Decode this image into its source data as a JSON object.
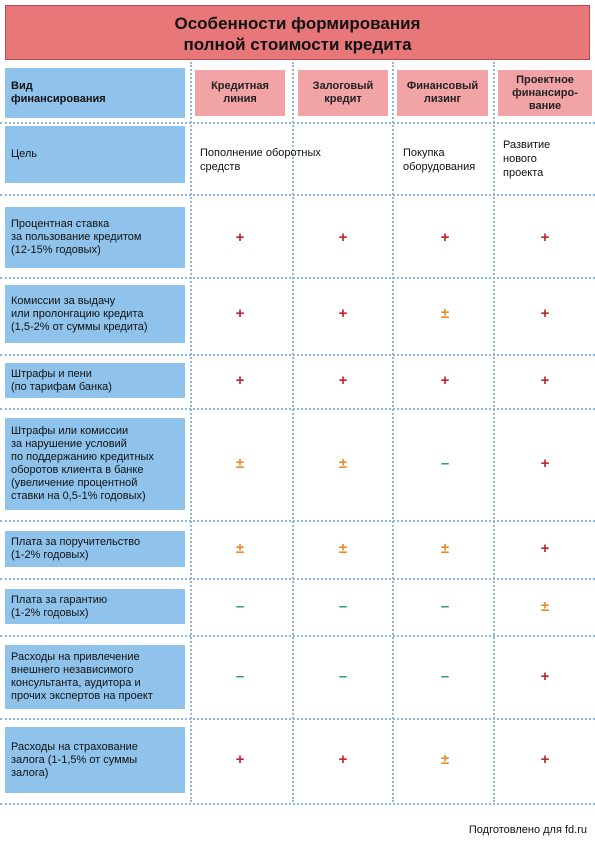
{
  "header": {
    "title": [
      "Особенности формирования",
      "полной стоимости кредита"
    ]
  },
  "table": {
    "corner": [
      "Вид",
      "финансирования"
    ],
    "columns": [
      [
        "Кредитная",
        "линия"
      ],
      [
        "Залоговый",
        "кредит"
      ],
      [
        "Финансовый",
        "лизинг"
      ],
      [
        "Проектное",
        "финансиро-",
        "вание"
      ]
    ],
    "goal": {
      "label": "Цель",
      "cells": [
        [
          "Пополнение оборотных",
          "средств"
        ],
        [
          "Покупка",
          "оборудования"
        ],
        [
          "Развитие",
          "нового",
          "проекта"
        ]
      ]
    },
    "rows": [
      {
        "label": [
          "Процентная ставка",
          "за пользование кредитом",
          "(12-15% годовых)"
        ],
        "cells": [
          "+",
          "+",
          "+",
          "+"
        ]
      },
      {
        "label": [
          "Комиссии за выдачу",
          "или пролонгацию кредита",
          "(1,5-2% от суммы кредита)"
        ],
        "cells": [
          "+",
          "+",
          "±",
          "+"
        ]
      },
      {
        "label": [
          "Штрафы и пени",
          "(по тарифам банка)"
        ],
        "cells": [
          "+",
          "+",
          "+",
          "+"
        ]
      },
      {
        "label": [
          "Штрафы или комиссии",
          "за нарушение условий",
          "по поддержанию кредитных",
          "оборотов клиента в банке",
          "(увеличение процентной",
          "ставки на 0,5-1% годовых)"
        ],
        "cells": [
          "±",
          "±",
          "–",
          "+"
        ]
      },
      {
        "label": [
          "Плата за поручительство",
          "(1-2% годовых)"
        ],
        "cells": [
          "±",
          "±",
          "±",
          "+"
        ]
      },
      {
        "label": [
          "Плата за гарантию",
          "(1-2% годовых)"
        ],
        "cells": [
          "–",
          "–",
          "–",
          "±"
        ]
      },
      {
        "label": [
          "Расходы на привлечение",
          "внешнего независимого",
          "консультанта, аудитора и",
          "прочих экспертов на проект"
        ],
        "cells": [
          "–",
          "–",
          "–",
          "+"
        ]
      },
      {
        "label": [
          "Расходы на страхование",
          "залога (1-1,5% от суммы",
          "залога)"
        ],
        "cells": [
          "+",
          "+",
          "±",
          "+"
        ]
      }
    ]
  },
  "footer": {
    "note": "Подготовлено для fd.ru"
  }
}
